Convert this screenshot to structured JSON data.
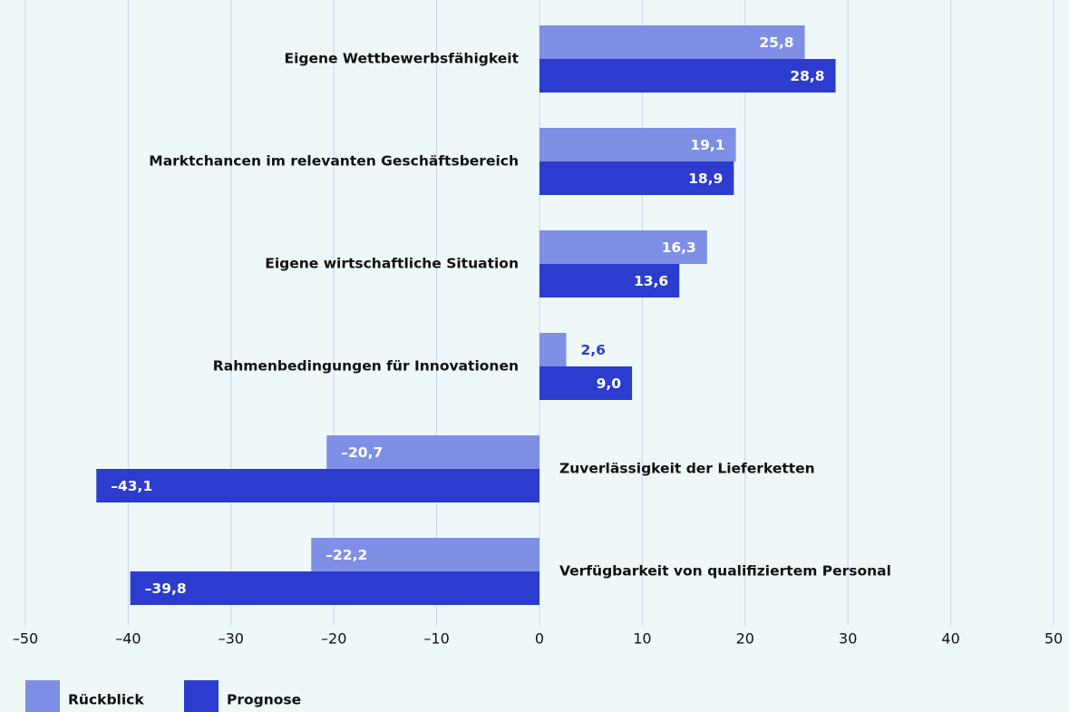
{
  "chart_data": {
    "type": "bar",
    "orientation": "horizontal",
    "categories": [
      "Eigene Wettbewerbsfähigkeit",
      "Marktchancen im relevanten Geschäftsbereich",
      "Eigene wirtschaftliche Situation",
      "Rahmenbedingungen für Innovationen",
      "Zuverlässigkeit der Lieferketten",
      "Verfügbarkeit von qualifiziertem Personal"
    ],
    "series": [
      {
        "name": "Rückblick",
        "color": "#7f8fe6",
        "values": [
          25.8,
          19.1,
          16.3,
          2.6,
          -20.7,
          -22.2
        ],
        "value_labels": [
          "25,8",
          "19,1",
          "16,3",
          "2,6",
          "–20,7",
          "–22,2"
        ]
      },
      {
        "name": "Prognose",
        "color": "#2b3ccf",
        "values": [
          28.8,
          18.9,
          13.6,
          9.0,
          -43.1,
          -39.8
        ],
        "value_labels": [
          "28,8",
          "18,9",
          "13,6",
          "9,0",
          "–43,1",
          "–39,8"
        ]
      }
    ],
    "xlim": [
      -50,
      50
    ],
    "xticks": [
      {
        "value": -50,
        "label": "–50"
      },
      {
        "value": -40,
        "label": "–40"
      },
      {
        "value": -30,
        "label": "–30"
      },
      {
        "value": -20,
        "label": "–20"
      },
      {
        "value": -10,
        "label": "–10"
      },
      0,
      10,
      20,
      30,
      40,
      50
    ],
    "grid": true,
    "legend": "bottom-left"
  }
}
